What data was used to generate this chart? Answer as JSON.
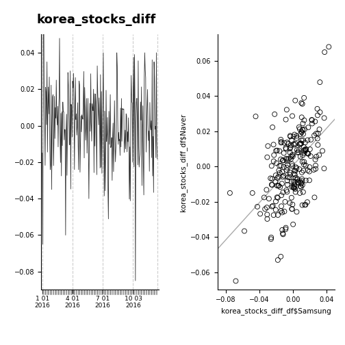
{
  "title": "korea_stocks_diff",
  "title_fontsize": 13,
  "title_fontweight": "bold",
  "background_color": "#ffffff",
  "left_panel": {
    "ylabel": "",
    "ylim": [
      -0.09,
      0.05
    ],
    "yticks": [
      -0.08,
      -0.06,
      -0.04,
      -0.02,
      0.0,
      0.02,
      0.04
    ],
    "xtick_labels": [
      "1 01\n2016",
      "4 01\n2016",
      "7 01\n2016",
      "10 03\n2016"
    ],
    "vline_positions": [
      0,
      65,
      130,
      195,
      248
    ],
    "grid_color": "#cccccc",
    "line_color": "#333333"
  },
  "right_panel": {
    "xlabel": "korea_stocks_diff_df$Samsung",
    "ylabel": "korea_stocks_diff_df$Naver",
    "xlim": [
      -0.09,
      0.05
    ],
    "ylim": [
      -0.07,
      0.075
    ],
    "xticks": [
      -0.08,
      -0.04,
      0.0,
      0.04
    ],
    "yticks": [
      -0.06,
      -0.04,
      -0.02,
      0.0,
      0.02,
      0.04,
      0.06
    ],
    "regression_color": "#aaaaaa",
    "point_color": "none",
    "point_edge_color": "#000000",
    "marker_size": 5
  },
  "seed": 42,
  "n_points": 248
}
